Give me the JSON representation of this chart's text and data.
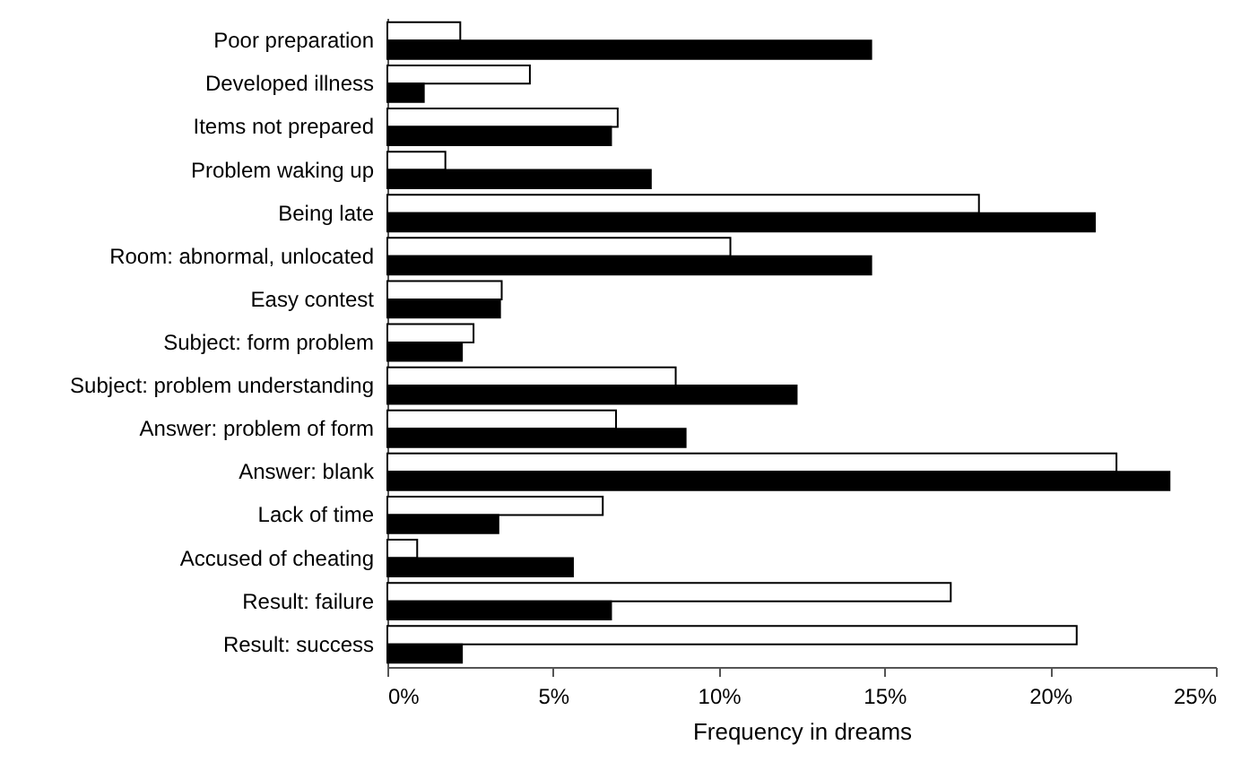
{
  "chart_data": {
    "type": "bar",
    "orientation": "horizontal",
    "xlabel": "Frequency in dreams",
    "categories": [
      "Poor  preparation",
      "Developed illness",
      "Items not prepared",
      "Problem waking up",
      "Being late",
      "Room: abnormal, unlocated",
      "Easy contest",
      "Subject: form problem",
      "Subject: problem understanding",
      "Answer: problem of form",
      "Answer: blank",
      "Lack of time",
      "Accused of cheating",
      "Result: failure",
      "Result: success"
    ],
    "series": [
      {
        "color": "#ffffff",
        "values": [
          2.2,
          4.3,
          6.95,
          1.75,
          17.85,
          10.35,
          3.45,
          2.6,
          8.7,
          6.9,
          22.0,
          6.5,
          0.9,
          17.0,
          20.8
        ]
      },
      {
        "color": "#000000",
        "values": [
          14.6,
          1.1,
          6.75,
          7.95,
          21.35,
          14.6,
          3.4,
          2.25,
          12.35,
          9.0,
          23.6,
          3.35,
          5.6,
          6.75,
          2.25
        ]
      }
    ],
    "xlim": [
      0,
      25
    ],
    "xticks": [
      {
        "value": 0,
        "label": "0%"
      },
      {
        "value": 5,
        "label": "5%"
      },
      {
        "value": 10,
        "label": "10%"
      },
      {
        "value": 15,
        "label": "15%"
      },
      {
        "value": 20,
        "label": "20%"
      },
      {
        "value": 25,
        "label": "25%"
      }
    ],
    "grid": false
  }
}
